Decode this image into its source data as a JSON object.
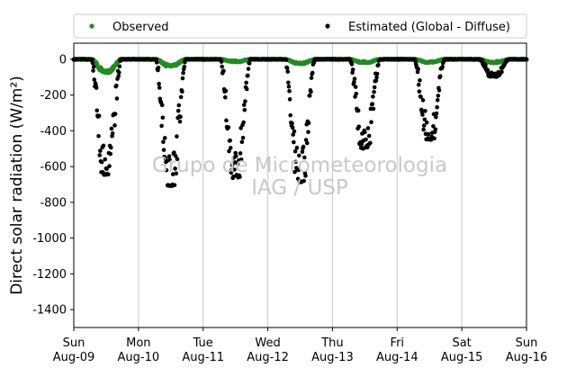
{
  "chart_data": {
    "type": "scatter",
    "title": "",
    "ylabel": "Direct solar radiation (W/m²)",
    "ylim": [
      -1500,
      90
    ],
    "yticks": [
      0,
      -200,
      -400,
      -600,
      -800,
      -1000,
      -1200,
      -1400
    ],
    "xlim": [
      "2009-08-09",
      "2009-08-16"
    ],
    "x_grid": true,
    "y_grid": false,
    "legend_position": "top-outside",
    "watermark": [
      "Grupo de Micrometeorologia",
      "IAG / USP"
    ],
    "x_ticks": [
      {
        "day": "Sun",
        "date": "Aug-09"
      },
      {
        "day": "Mon",
        "date": "Aug-10"
      },
      {
        "day": "Tue",
        "date": "Aug-11"
      },
      {
        "day": "Wed",
        "date": "Aug-12"
      },
      {
        "day": "Thu",
        "date": "Aug-13"
      },
      {
        "day": "Fri",
        "date": "Aug-14"
      },
      {
        "day": "Sat",
        "date": "Aug-15"
      },
      {
        "day": "Sun",
        "date": "Aug-16"
      }
    ],
    "series": [
      {
        "name": "Observed",
        "color": "#228b22",
        "daily": [
          {
            "date": "2009-08-09",
            "start_hour": 6.5,
            "end_hour": 17.5,
            "min": -75
          },
          {
            "date": "2009-08-10",
            "start_hour": 6.5,
            "end_hour": 17.5,
            "min": -40
          },
          {
            "date": "2009-08-11",
            "start_hour": 6.5,
            "end_hour": 17.5,
            "min": -15
          },
          {
            "date": "2009-08-12",
            "start_hour": 6.5,
            "end_hour": 17.5,
            "min": -25
          },
          {
            "date": "2009-08-13",
            "start_hour": 6.5,
            "end_hour": 17.5,
            "min": -20
          },
          {
            "date": "2009-08-14",
            "start_hour": 6.5,
            "end_hour": 17.5,
            "min": -18
          },
          {
            "date": "2009-08-15",
            "start_hour": 6.5,
            "end_hour": 17.5,
            "min": -20
          }
        ]
      },
      {
        "name": "Estimated (Global - Diffuse)",
        "color": "#000000",
        "daily": [
          {
            "date": "2009-08-09",
            "start_hour": 6.5,
            "end_hour": 17.5,
            "min": -650
          },
          {
            "date": "2009-08-10",
            "start_hour": 6.5,
            "end_hour": 17.5,
            "min": -710
          },
          {
            "date": "2009-08-11",
            "start_hour": 6.5,
            "end_hour": 17.5,
            "min": -665
          },
          {
            "date": "2009-08-12",
            "start_hour": 6.5,
            "end_hour": 17.5,
            "min": -690
          },
          {
            "date": "2009-08-13",
            "start_hour": 6.5,
            "end_hour": 17.5,
            "min": -500
          },
          {
            "date": "2009-08-14",
            "start_hour": 6.5,
            "end_hour": 17.5,
            "min": -450
          },
          {
            "date": "2009-08-15",
            "start_hour": 6.5,
            "end_hour": 17.5,
            "min": -100
          }
        ]
      }
    ]
  }
}
